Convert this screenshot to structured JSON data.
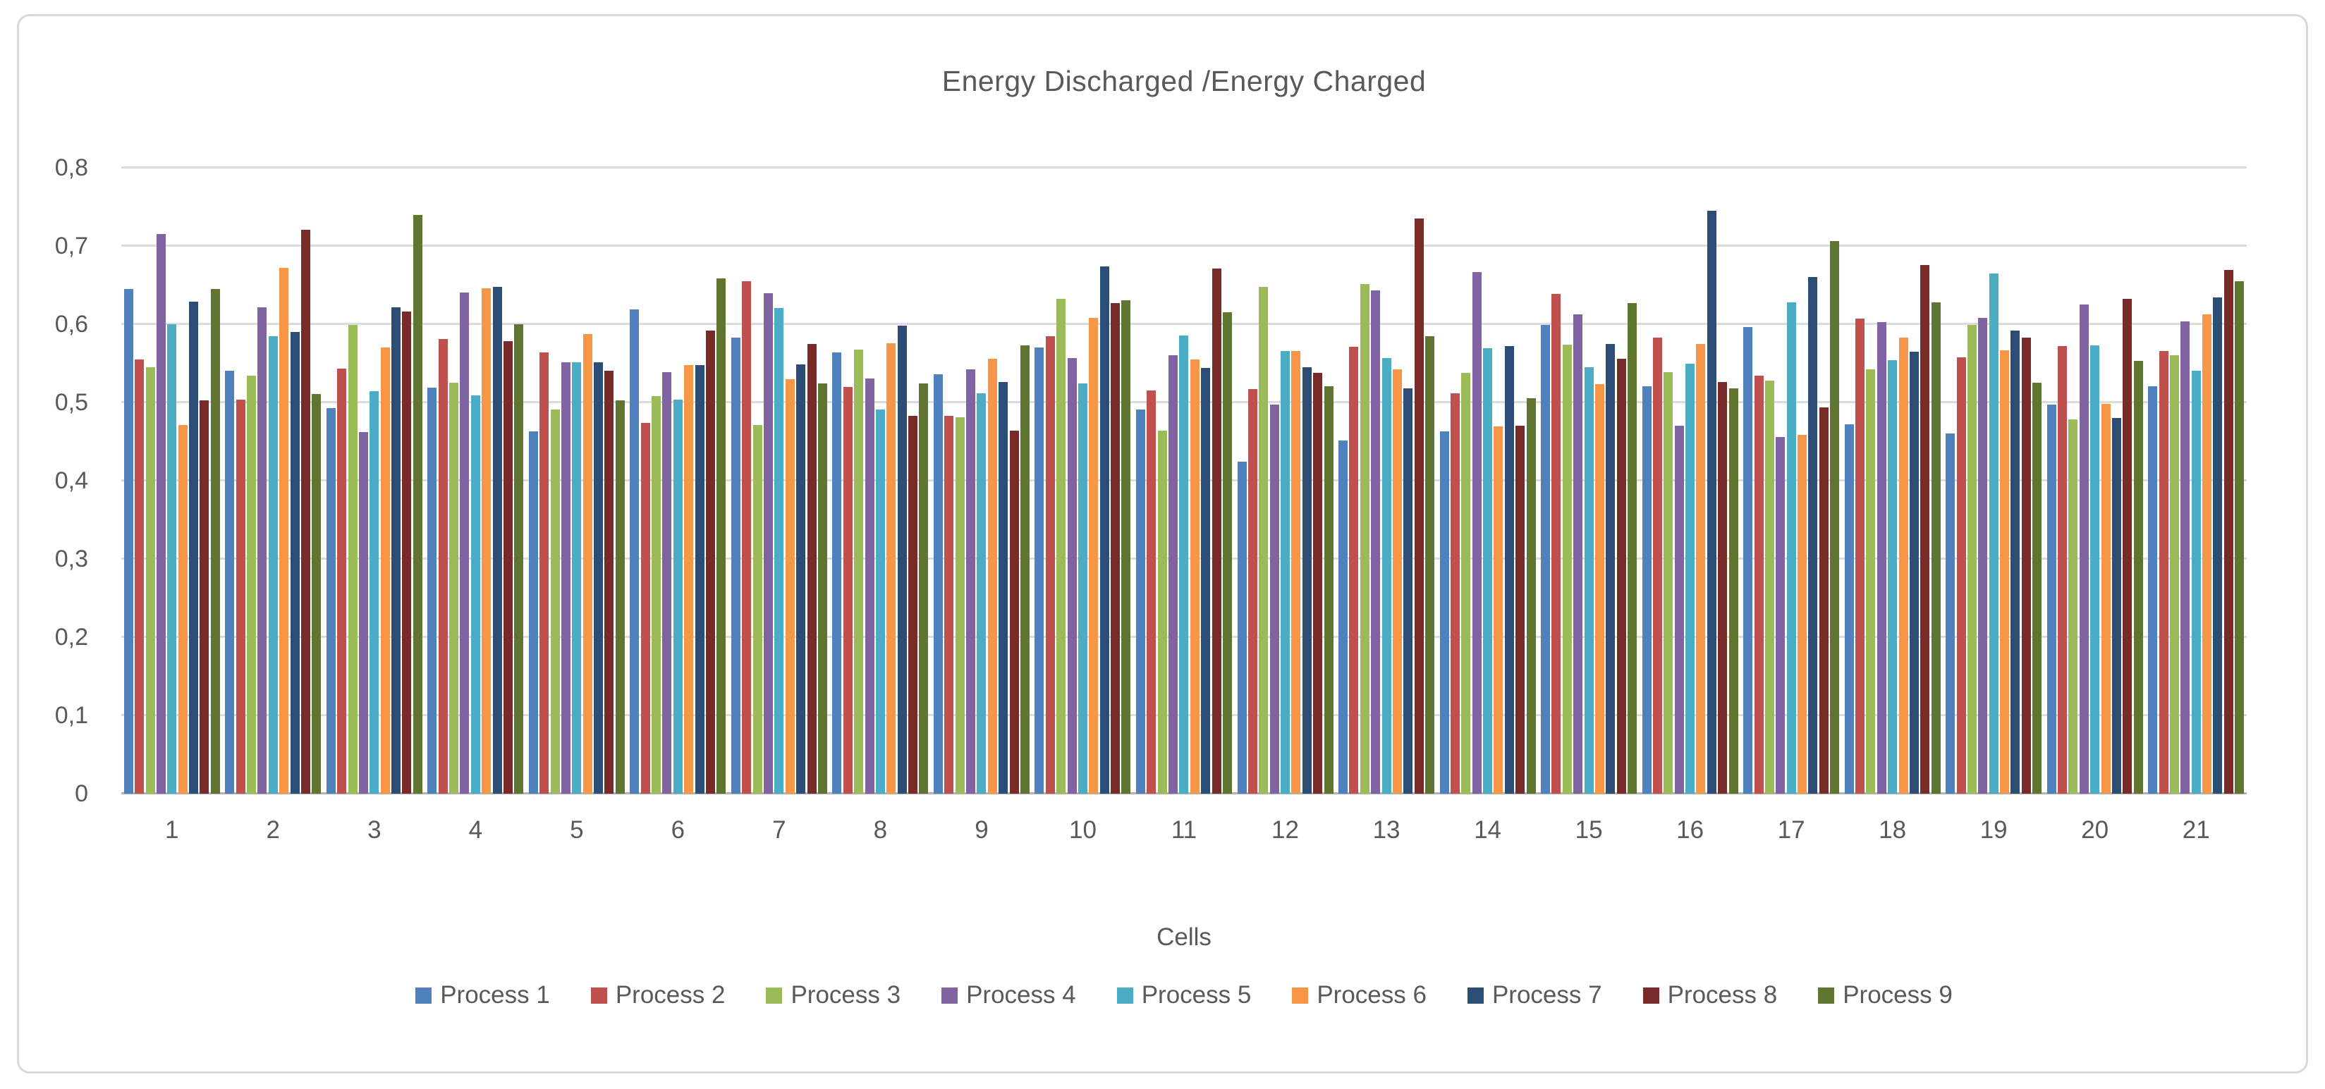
{
  "chart_data": {
    "type": "bar",
    "title": "Energy Discharged /Energy Charged",
    "xlabel": "Cells",
    "ylabel": "",
    "ylim": [
      0,
      0.8
    ],
    "ytick_step": 0.1,
    "ytick_labels": [
      "0",
      "0,1",
      "0,2",
      "0,3",
      "0,4",
      "0,5",
      "0,6",
      "0,7",
      "0,8"
    ],
    "grid": true,
    "legend_position": "bottom",
    "categories": [
      "1",
      "2",
      "3",
      "4",
      "5",
      "6",
      "7",
      "8",
      "9",
      "10",
      "11",
      "12",
      "13",
      "14",
      "15",
      "16",
      "17",
      "18",
      "19",
      "20",
      "21"
    ],
    "series": [
      {
        "name": "Process 1",
        "color": "#4F81BD",
        "values": [
          0.645,
          0.541,
          0.493,
          0.519,
          0.463,
          0.619,
          0.583,
          0.564,
          0.536,
          0.57,
          0.491,
          0.424,
          0.451,
          0.463,
          0.599,
          0.521,
          0.596,
          0.472,
          0.46,
          0.497,
          0.521
        ]
      },
      {
        "name": "Process 2",
        "color": "#C0504D",
        "values": [
          0.555,
          0.504,
          0.543,
          0.581,
          0.564,
          0.474,
          0.655,
          0.52,
          0.483,
          0.585,
          0.515,
          0.517,
          0.571,
          0.512,
          0.639,
          0.583,
          0.534,
          0.607,
          0.558,
          0.572,
          0.566
        ]
      },
      {
        "name": "Process 3",
        "color": "#9BBB59",
        "values": [
          0.545,
          0.534,
          0.599,
          0.525,
          0.491,
          0.508,
          0.471,
          0.568,
          0.481,
          0.632,
          0.464,
          0.648,
          0.651,
          0.538,
          0.574,
          0.539,
          0.528,
          0.542,
          0.599,
          0.478,
          0.56
        ]
      },
      {
        "name": "Process 4",
        "color": "#8064A2",
        "values": [
          0.715,
          0.622,
          0.462,
          0.641,
          0.551,
          0.539,
          0.64,
          0.531,
          0.542,
          0.557,
          0.56,
          0.497,
          0.643,
          0.667,
          0.613,
          0.47,
          0.456,
          0.603,
          0.608,
          0.625,
          0.604
        ]
      },
      {
        "name": "Process 5",
        "color": "#4BACC6",
        "values": [
          0.6,
          0.585,
          0.514,
          0.509,
          0.551,
          0.504,
          0.621,
          0.491,
          0.512,
          0.524,
          0.586,
          0.566,
          0.557,
          0.569,
          0.545,
          0.55,
          0.628,
          0.554,
          0.665,
          0.573,
          0.541
        ]
      },
      {
        "name": "Process 6",
        "color": "#F79646",
        "values": [
          0.471,
          0.672,
          0.57,
          0.646,
          0.587,
          0.548,
          0.53,
          0.576,
          0.556,
          0.608,
          0.555,
          0.566,
          0.542,
          0.469,
          0.523,
          0.575,
          0.459,
          0.583,
          0.567,
          0.498,
          0.613
        ]
      },
      {
        "name": "Process 7",
        "color": "#2C4D75",
        "values": [
          0.629,
          0.59,
          0.622,
          0.648,
          0.551,
          0.548,
          0.549,
          0.598,
          0.526,
          0.674,
          0.544,
          0.545,
          0.518,
          0.572,
          0.575,
          0.745,
          0.66,
          0.565,
          0.592,
          0.48,
          0.634
        ]
      },
      {
        "name": "Process 8",
        "color": "#772C2A",
        "values": [
          0.503,
          0.721,
          0.616,
          0.578,
          0.541,
          0.592,
          0.575,
          0.483,
          0.464,
          0.627,
          0.671,
          0.538,
          0.735,
          0.47,
          0.556,
          0.526,
          0.494,
          0.676,
          0.583,
          0.632,
          0.669
        ]
      },
      {
        "name": "Process 9",
        "color": "#5F7530",
        "values": [
          0.645,
          0.511,
          0.74,
          0.6,
          0.503,
          0.659,
          0.524,
          0.524,
          0.573,
          0.631,
          0.615,
          0.521,
          0.585,
          0.505,
          0.627,
          0.518,
          0.706,
          0.628,
          0.525,
          0.553,
          0.655
        ]
      }
    ]
  },
  "colors": {
    "text": "#595959",
    "gridline": "#dcdcdc",
    "axis_line": "#b3b3b3",
    "frame_border": "#d9d9d9",
    "background": "#ffffff"
  }
}
